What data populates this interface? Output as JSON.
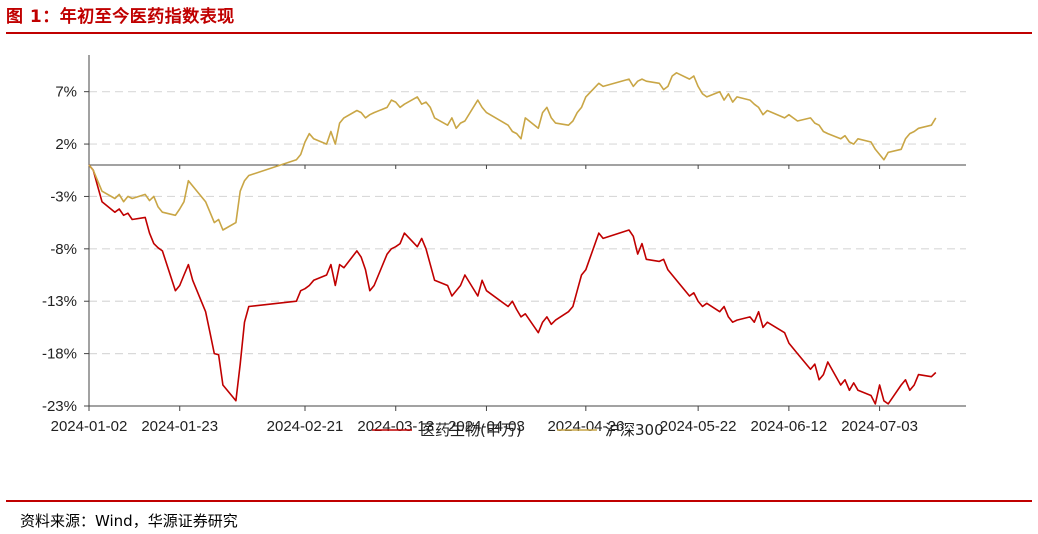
{
  "figure": {
    "title": "图 1：年初至今医药指数表现",
    "source": "资料来源：Wind，华源证券研究"
  },
  "colors": {
    "accent": "#c00000",
    "series_1": "#c00000",
    "series_2": "#c9a646",
    "grid": "#d9d9d9"
  },
  "chart_data": {
    "type": "line",
    "title": "",
    "xlabel": "",
    "ylabel": "",
    "ylim": [
      -23,
      10.5
    ],
    "yticks": [
      7,
      2,
      -3,
      -8,
      -13,
      -18,
      -23
    ],
    "ytick_labels": [
      "7%",
      "2%",
      "-3%",
      "-8%",
      "-13%",
      "-18%",
      "-23%"
    ],
    "xlim": [
      "2024-01-02",
      "2024-07-23"
    ],
    "xtick_labels": [
      "2024-01-02",
      "2024-01-23",
      "2024-02-21",
      "2024-03-13",
      "2024-04-03",
      "2024-04-26",
      "2024-05-22",
      "2024-06-12",
      "2024-07-03"
    ],
    "grid": "horizontal dashed",
    "legend": "bottom-center",
    "series": [
      {
        "name": "医药生物(申万)",
        "color": "#c00000",
        "points": [
          [
            "2024-01-02",
            0.0
          ],
          [
            "2024-01-03",
            -0.5
          ],
          [
            "2024-01-04",
            -2.0
          ],
          [
            "2024-01-05",
            -3.5
          ],
          [
            "2024-01-08",
            -4.5
          ],
          [
            "2024-01-09",
            -4.2
          ],
          [
            "2024-01-10",
            -4.8
          ],
          [
            "2024-01-11",
            -4.6
          ],
          [
            "2024-01-12",
            -5.2
          ],
          [
            "2024-01-15",
            -5.0
          ],
          [
            "2024-01-16",
            -6.5
          ],
          [
            "2024-01-17",
            -7.5
          ],
          [
            "2024-01-18",
            -7.9
          ],
          [
            "2024-01-19",
            -8.2
          ],
          [
            "2024-01-22",
            -12.0
          ],
          [
            "2024-01-23",
            -11.5
          ],
          [
            "2024-01-24",
            -10.5
          ],
          [
            "2024-01-25",
            -9.5
          ],
          [
            "2024-01-26",
            -11.0
          ],
          [
            "2024-01-29",
            -14.0
          ],
          [
            "2024-01-30",
            -16.0
          ],
          [
            "2024-01-31",
            -18.0
          ],
          [
            "2024-02-01",
            -18.1
          ],
          [
            "2024-02-02",
            -21.0
          ],
          [
            "2024-02-05",
            -22.5
          ],
          [
            "2024-02-06",
            -19.0
          ],
          [
            "2024-02-07",
            -15.0
          ],
          [
            "2024-02-08",
            -13.5
          ],
          [
            "2024-02-19",
            -13.0
          ],
          [
            "2024-02-20",
            -12.0
          ],
          [
            "2024-02-21",
            -11.8
          ],
          [
            "2024-02-22",
            -11.5
          ],
          [
            "2024-02-23",
            -11.0
          ],
          [
            "2024-02-26",
            -10.5
          ],
          [
            "2024-02-27",
            -9.5
          ],
          [
            "2024-02-28",
            -11.5
          ],
          [
            "2024-02-29",
            -9.5
          ],
          [
            "2024-03-01",
            -9.8
          ],
          [
            "2024-03-04",
            -8.2
          ],
          [
            "2024-03-05",
            -8.8
          ],
          [
            "2024-03-06",
            -10.0
          ],
          [
            "2024-03-07",
            -12.0
          ],
          [
            "2024-03-08",
            -11.5
          ],
          [
            "2024-03-11",
            -8.5
          ],
          [
            "2024-03-12",
            -8.0
          ],
          [
            "2024-03-13",
            -7.8
          ],
          [
            "2024-03-14",
            -7.5
          ],
          [
            "2024-03-15",
            -6.5
          ],
          [
            "2024-03-18",
            -7.8
          ],
          [
            "2024-03-19",
            -7.0
          ],
          [
            "2024-03-20",
            -8.0
          ],
          [
            "2024-03-21",
            -9.5
          ],
          [
            "2024-03-22",
            -11.0
          ],
          [
            "2024-03-25",
            -11.5
          ],
          [
            "2024-03-26",
            -12.5
          ],
          [
            "2024-03-27",
            -12.0
          ],
          [
            "2024-03-28",
            -11.5
          ],
          [
            "2024-03-29",
            -10.5
          ],
          [
            "2024-04-01",
            -12.5
          ],
          [
            "2024-04-02",
            -11.0
          ],
          [
            "2024-04-03",
            -12.0
          ],
          [
            "2024-04-08",
            -13.5
          ],
          [
            "2024-04-09",
            -13.0
          ],
          [
            "2024-04-10",
            -13.8
          ],
          [
            "2024-04-11",
            -14.5
          ],
          [
            "2024-04-12",
            -14.2
          ],
          [
            "2024-04-15",
            -16.0
          ],
          [
            "2024-04-16",
            -15.0
          ],
          [
            "2024-04-17",
            -14.5
          ],
          [
            "2024-04-18",
            -15.2
          ],
          [
            "2024-04-19",
            -14.8
          ],
          [
            "2024-04-22",
            -14.0
          ],
          [
            "2024-04-23",
            -13.5
          ],
          [
            "2024-04-24",
            -12.0
          ],
          [
            "2024-04-25",
            -10.5
          ],
          [
            "2024-04-26",
            -10.0
          ],
          [
            "2024-04-29",
            -6.5
          ],
          [
            "2024-04-30",
            -7.0
          ],
          [
            "2024-05-06",
            -6.2
          ],
          [
            "2024-05-07",
            -6.8
          ],
          [
            "2024-05-08",
            -8.5
          ],
          [
            "2024-05-09",
            -7.5
          ],
          [
            "2024-05-10",
            -9.0
          ],
          [
            "2024-05-13",
            -9.2
          ],
          [
            "2024-05-14",
            -9.0
          ],
          [
            "2024-05-15",
            -10.0
          ],
          [
            "2024-05-16",
            -10.5
          ],
          [
            "2024-05-17",
            -11.0
          ],
          [
            "2024-05-20",
            -12.5
          ],
          [
            "2024-05-21",
            -12.2
          ],
          [
            "2024-05-22",
            -13.0
          ],
          [
            "2024-05-23",
            -13.5
          ],
          [
            "2024-05-24",
            -13.2
          ],
          [
            "2024-05-27",
            -14.0
          ],
          [
            "2024-05-28",
            -13.5
          ],
          [
            "2024-05-29",
            -14.5
          ],
          [
            "2024-05-30",
            -15.0
          ],
          [
            "2024-05-31",
            -14.8
          ],
          [
            "2024-06-03",
            -14.5
          ],
          [
            "2024-06-04",
            -15.0
          ],
          [
            "2024-06-05",
            -14.0
          ],
          [
            "2024-06-06",
            -15.5
          ],
          [
            "2024-06-07",
            -15.0
          ],
          [
            "2024-06-11",
            -16.0
          ],
          [
            "2024-06-12",
            -17.0
          ],
          [
            "2024-06-13",
            -17.5
          ],
          [
            "2024-06-14",
            -18.0
          ],
          [
            "2024-06-17",
            -19.5
          ],
          [
            "2024-06-18",
            -19.0
          ],
          [
            "2024-06-19",
            -20.5
          ],
          [
            "2024-06-20",
            -20.0
          ],
          [
            "2024-06-21",
            -18.8
          ],
          [
            "2024-06-24",
            -21.0
          ],
          [
            "2024-06-25",
            -20.5
          ],
          [
            "2024-06-26",
            -21.5
          ],
          [
            "2024-06-27",
            -20.8
          ],
          [
            "2024-06-28",
            -21.5
          ],
          [
            "2024-07-01",
            -22.0
          ],
          [
            "2024-07-02",
            -22.8
          ],
          [
            "2024-07-03",
            -21.0
          ],
          [
            "2024-07-04",
            -22.5
          ],
          [
            "2024-07-05",
            -22.8
          ],
          [
            "2024-07-08",
            -21.0
          ],
          [
            "2024-07-09",
            -20.5
          ],
          [
            "2024-07-10",
            -21.5
          ],
          [
            "2024-07-11",
            -21.0
          ],
          [
            "2024-07-12",
            -20.0
          ],
          [
            "2024-07-15",
            -20.2
          ],
          [
            "2024-07-16",
            -19.8
          ]
        ]
      },
      {
        "name": "沪深300",
        "color": "#c9a646",
        "points": [
          [
            "2024-01-02",
            0.0
          ],
          [
            "2024-01-03",
            -0.5
          ],
          [
            "2024-01-04",
            -1.5
          ],
          [
            "2024-01-05",
            -2.5
          ],
          [
            "2024-01-08",
            -3.2
          ],
          [
            "2024-01-09",
            -2.8
          ],
          [
            "2024-01-10",
            -3.5
          ],
          [
            "2024-01-11",
            -3.0
          ],
          [
            "2024-01-12",
            -3.2
          ],
          [
            "2024-01-15",
            -2.8
          ],
          [
            "2024-01-16",
            -3.4
          ],
          [
            "2024-01-17",
            -3.0
          ],
          [
            "2024-01-18",
            -4.0
          ],
          [
            "2024-01-19",
            -4.5
          ],
          [
            "2024-01-22",
            -4.8
          ],
          [
            "2024-01-23",
            -4.2
          ],
          [
            "2024-01-24",
            -3.5
          ],
          [
            "2024-01-25",
            -1.5
          ],
          [
            "2024-01-26",
            -2.0
          ],
          [
            "2024-01-29",
            -3.5
          ],
          [
            "2024-01-30",
            -4.5
          ],
          [
            "2024-01-31",
            -5.5
          ],
          [
            "2024-02-01",
            -5.2
          ],
          [
            "2024-02-02",
            -6.2
          ],
          [
            "2024-02-05",
            -5.5
          ],
          [
            "2024-02-06",
            -2.5
          ],
          [
            "2024-02-07",
            -1.5
          ],
          [
            "2024-02-08",
            -1.0
          ],
          [
            "2024-02-19",
            0.5
          ],
          [
            "2024-02-20",
            1.0
          ],
          [
            "2024-02-21",
            2.2
          ],
          [
            "2024-02-22",
            3.0
          ],
          [
            "2024-02-23",
            2.5
          ],
          [
            "2024-02-26",
            2.0
          ],
          [
            "2024-02-27",
            3.2
          ],
          [
            "2024-02-28",
            2.0
          ],
          [
            "2024-02-29",
            4.0
          ],
          [
            "2024-03-01",
            4.5
          ],
          [
            "2024-03-04",
            5.2
          ],
          [
            "2024-03-05",
            5.0
          ],
          [
            "2024-03-06",
            4.5
          ],
          [
            "2024-03-07",
            4.8
          ],
          [
            "2024-03-08",
            5.0
          ],
          [
            "2024-03-11",
            5.5
          ],
          [
            "2024-03-12",
            6.2
          ],
          [
            "2024-03-13",
            6.0
          ],
          [
            "2024-03-14",
            5.5
          ],
          [
            "2024-03-15",
            5.8
          ],
          [
            "2024-03-18",
            6.5
          ],
          [
            "2024-03-19",
            5.8
          ],
          [
            "2024-03-20",
            6.0
          ],
          [
            "2024-03-21",
            5.5
          ],
          [
            "2024-03-22",
            4.5
          ],
          [
            "2024-03-25",
            3.8
          ],
          [
            "2024-03-26",
            4.5
          ],
          [
            "2024-03-27",
            3.5
          ],
          [
            "2024-03-28",
            4.0
          ],
          [
            "2024-03-29",
            4.2
          ],
          [
            "2024-04-01",
            6.2
          ],
          [
            "2024-04-02",
            5.5
          ],
          [
            "2024-04-03",
            5.0
          ],
          [
            "2024-04-08",
            3.8
          ],
          [
            "2024-04-09",
            3.2
          ],
          [
            "2024-04-10",
            3.0
          ],
          [
            "2024-04-11",
            2.5
          ],
          [
            "2024-04-12",
            4.5
          ],
          [
            "2024-04-15",
            3.5
          ],
          [
            "2024-04-16",
            5.0
          ],
          [
            "2024-04-17",
            5.5
          ],
          [
            "2024-04-18",
            4.5
          ],
          [
            "2024-04-19",
            4.0
          ],
          [
            "2024-04-22",
            3.8
          ],
          [
            "2024-04-23",
            4.2
          ],
          [
            "2024-04-24",
            5.0
          ],
          [
            "2024-04-25",
            5.5
          ],
          [
            "2024-04-26",
            6.5
          ],
          [
            "2024-04-29",
            7.8
          ],
          [
            "2024-04-30",
            7.5
          ],
          [
            "2024-05-06",
            8.2
          ],
          [
            "2024-05-07",
            7.5
          ],
          [
            "2024-05-08",
            8.0
          ],
          [
            "2024-05-09",
            8.2
          ],
          [
            "2024-05-10",
            8.0
          ],
          [
            "2024-05-13",
            7.8
          ],
          [
            "2024-05-14",
            7.2
          ],
          [
            "2024-05-15",
            7.5
          ],
          [
            "2024-05-16",
            8.5
          ],
          [
            "2024-05-17",
            8.8
          ],
          [
            "2024-05-20",
            8.2
          ],
          [
            "2024-05-21",
            8.5
          ],
          [
            "2024-05-22",
            7.5
          ],
          [
            "2024-05-23",
            6.8
          ],
          [
            "2024-05-24",
            6.5
          ],
          [
            "2024-05-27",
            7.0
          ],
          [
            "2024-05-28",
            6.2
          ],
          [
            "2024-05-29",
            6.8
          ],
          [
            "2024-05-30",
            6.0
          ],
          [
            "2024-05-31",
            6.5
          ],
          [
            "2024-06-03",
            6.2
          ],
          [
            "2024-06-04",
            5.8
          ],
          [
            "2024-06-05",
            5.5
          ],
          [
            "2024-06-06",
            4.8
          ],
          [
            "2024-06-07",
            5.2
          ],
          [
            "2024-06-11",
            4.5
          ],
          [
            "2024-06-12",
            4.8
          ],
          [
            "2024-06-13",
            4.5
          ],
          [
            "2024-06-14",
            4.2
          ],
          [
            "2024-06-17",
            4.5
          ],
          [
            "2024-06-18",
            4.0
          ],
          [
            "2024-06-19",
            3.8
          ],
          [
            "2024-06-20",
            3.2
          ],
          [
            "2024-06-21",
            3.0
          ],
          [
            "2024-06-24",
            2.5
          ],
          [
            "2024-06-25",
            2.8
          ],
          [
            "2024-06-26",
            2.2
          ],
          [
            "2024-06-27",
            2.0
          ],
          [
            "2024-06-28",
            2.5
          ],
          [
            "2024-07-01",
            2.2
          ],
          [
            "2024-07-02",
            1.5
          ],
          [
            "2024-07-03",
            1.0
          ],
          [
            "2024-07-04",
            0.5
          ],
          [
            "2024-07-05",
            1.2
          ],
          [
            "2024-07-08",
            1.5
          ],
          [
            "2024-07-09",
            2.5
          ],
          [
            "2024-07-10",
            3.0
          ],
          [
            "2024-07-11",
            3.2
          ],
          [
            "2024-07-12",
            3.5
          ],
          [
            "2024-07-15",
            3.8
          ],
          [
            "2024-07-16",
            4.5
          ]
        ]
      }
    ]
  }
}
